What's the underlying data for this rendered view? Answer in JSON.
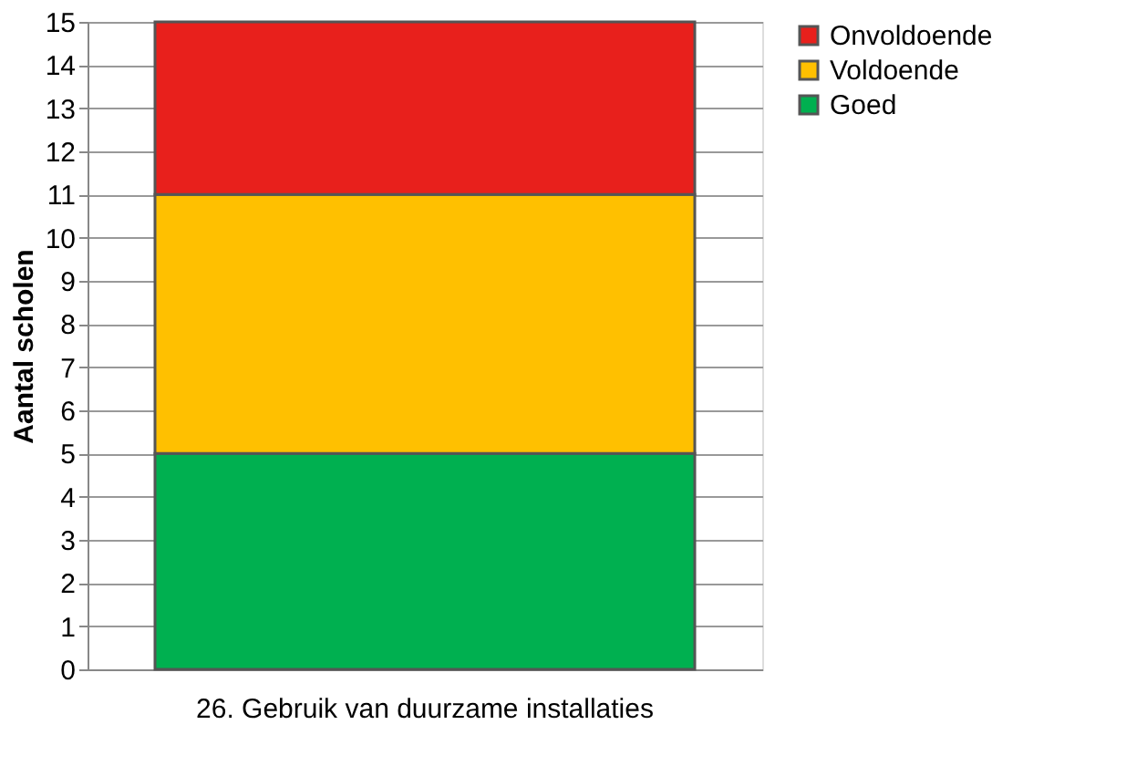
{
  "chart_data": {
    "type": "bar",
    "stacked": true,
    "ylabel": "Aantal scholen",
    "categories": [
      "26. Gebruik van duurzame installaties"
    ],
    "series": [
      {
        "name": "Goed",
        "color": "#00b050",
        "values": [
          5
        ]
      },
      {
        "name": "Voldoende",
        "color": "#ffc000",
        "values": [
          6
        ]
      },
      {
        "name": "Onvoldoende",
        "color": "#e8201c",
        "values": [
          4
        ]
      }
    ],
    "ylim": [
      0,
      15
    ],
    "yticks": [
      0,
      1,
      2,
      3,
      4,
      5,
      6,
      7,
      8,
      9,
      10,
      11,
      12,
      13,
      14,
      15
    ],
    "grid": "y",
    "legend": "top right"
  }
}
